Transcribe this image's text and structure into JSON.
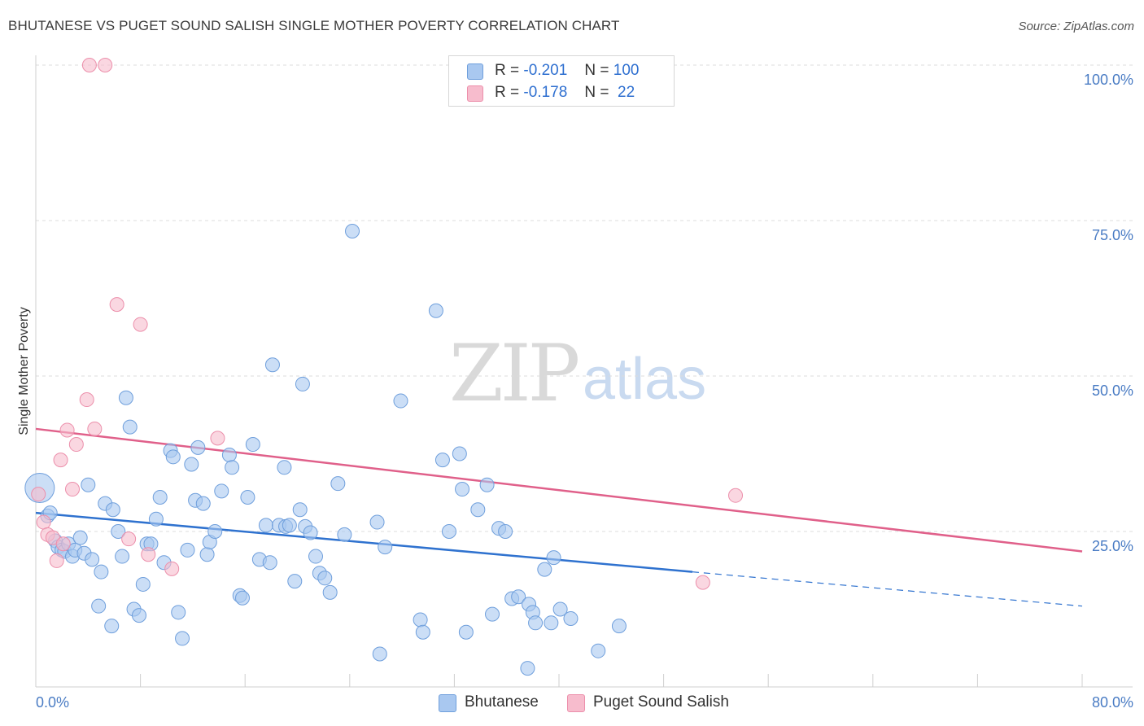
{
  "header": {
    "title": "BHUTANESE VS PUGET SOUND SALISH SINGLE MOTHER POVERTY CORRELATION CHART",
    "source": "Source: ZipAtlas.com"
  },
  "watermark": {
    "zip": "ZIP",
    "atlas": "atlas"
  },
  "legend": {
    "rows": [
      {
        "r_label": "R =",
        "r_value": "-0.201",
        "n_label": "N =",
        "n_value": "100",
        "color": "#a9c8f0"
      },
      {
        "r_label": "R =",
        "r_value": "-0.178",
        "n_label": "N =",
        "n_value": " 22",
        "color": "#f7bccd"
      }
    ]
  },
  "bottom_legend": [
    {
      "label": "Bhutanese",
      "color": "#a9c8f0"
    },
    {
      "label": "Puget Sound Salish",
      "color": "#f7bccd"
    }
  ],
  "chart_data": {
    "type": "scatter",
    "title": "BHUTANESE VS PUGET SOUND SALISH SINGLE MOTHER POVERTY CORRELATION CHART",
    "xlabel": "",
    "ylabel": "Single Mother Poverty",
    "xlim": [
      0,
      80
    ],
    "ylim": [
      0,
      100
    ],
    "x_tick_labels": [
      "0.0%",
      "80.0%"
    ],
    "y_ticks": [
      25,
      50,
      75,
      100
    ],
    "y_tick_labels": [
      "25.0%",
      "50.0%",
      "75.0%",
      "100.0%"
    ],
    "grid": "horizontal-dashed",
    "legend_position": "top-center",
    "series": [
      {
        "name": "Bhutanese",
        "color": "#a9c8f0",
        "stroke": "#6f9fdc",
        "trend": {
          "x0": 0,
          "y0": 28.0,
          "x1": 50.2,
          "y1": 18.5,
          "dash_to_x": 80,
          "dash_to_y": 13.0,
          "color": "#2f72cf"
        },
        "points": [
          [
            0.3,
            32,
            3
          ],
          [
            0.9,
            27.5,
            1
          ],
          [
            1.1,
            28.0,
            1
          ],
          [
            1.5,
            23.5,
            1
          ],
          [
            1.7,
            22.5,
            1
          ],
          [
            2.0,
            22.0,
            1
          ],
          [
            2.2,
            21.8,
            1
          ],
          [
            2.5,
            23.0,
            1
          ],
          [
            2.8,
            21.0,
            1
          ],
          [
            3.0,
            22.0,
            1
          ],
          [
            3.4,
            24.0,
            1
          ],
          [
            3.7,
            21.5,
            1
          ],
          [
            4.0,
            32.5,
            1
          ],
          [
            4.3,
            20.5,
            1
          ],
          [
            4.8,
            13.0,
            1
          ],
          [
            5.0,
            18.5,
            1
          ],
          [
            5.3,
            29.5,
            1
          ],
          [
            5.8,
            9.8,
            1
          ],
          [
            5.9,
            28.5,
            1
          ],
          [
            6.3,
            25.0,
            1
          ],
          [
            6.6,
            21.0,
            1
          ],
          [
            6.9,
            46.5,
            1
          ],
          [
            7.2,
            41.8,
            1
          ],
          [
            7.5,
            12.5,
            1
          ],
          [
            7.9,
            11.5,
            1
          ],
          [
            8.2,
            16.5,
            1
          ],
          [
            8.5,
            23.0,
            1
          ],
          [
            8.8,
            23.0,
            1
          ],
          [
            9.2,
            27.0,
            1
          ],
          [
            9.5,
            30.5,
            1
          ],
          [
            9.8,
            20.0,
            1
          ],
          [
            10.3,
            38.0,
            1
          ],
          [
            10.5,
            37.0,
            1
          ],
          [
            10.9,
            12.0,
            1
          ],
          [
            11.2,
            7.8,
            1
          ],
          [
            11.6,
            22.0,
            1
          ],
          [
            11.9,
            35.8,
            1
          ],
          [
            12.2,
            30.0,
            1
          ],
          [
            12.4,
            38.5,
            1
          ],
          [
            12.8,
            29.5,
            1
          ],
          [
            13.1,
            21.3,
            1
          ],
          [
            13.3,
            23.3,
            1
          ],
          [
            13.7,
            25.0,
            1
          ],
          [
            14.2,
            31.5,
            1
          ],
          [
            14.8,
            37.3,
            1
          ],
          [
            15.0,
            35.3,
            1
          ],
          [
            15.6,
            14.7,
            1
          ],
          [
            15.8,
            14.3,
            1
          ],
          [
            16.2,
            30.5,
            1
          ],
          [
            16.6,
            39.0,
            1
          ],
          [
            17.1,
            20.5,
            1
          ],
          [
            17.6,
            26.0,
            1
          ],
          [
            17.9,
            20.0,
            1
          ],
          [
            18.1,
            51.8,
            1
          ],
          [
            18.6,
            26.0,
            1
          ],
          [
            19.0,
            35.3,
            1
          ],
          [
            19.1,
            25.8,
            1
          ],
          [
            19.4,
            26.0,
            1
          ],
          [
            19.8,
            17.0,
            1
          ],
          [
            20.2,
            28.5,
            1
          ],
          [
            20.4,
            48.7,
            1
          ],
          [
            20.6,
            25.8,
            1
          ],
          [
            21.0,
            24.8,
            1
          ],
          [
            21.4,
            21.0,
            1
          ],
          [
            21.7,
            18.3,
            1
          ],
          [
            22.1,
            17.5,
            1
          ],
          [
            22.5,
            15.2,
            1
          ],
          [
            23.1,
            32.7,
            1
          ],
          [
            23.6,
            24.5,
            1
          ],
          [
            24.2,
            73.3,
            1
          ],
          [
            26.1,
            26.5,
            1
          ],
          [
            26.3,
            5.3,
            1
          ],
          [
            26.7,
            22.5,
            1
          ],
          [
            27.9,
            46.0,
            1
          ],
          [
            29.4,
            10.8,
            1
          ],
          [
            29.6,
            8.8,
            1
          ],
          [
            30.6,
            60.5,
            1
          ],
          [
            31.1,
            36.5,
            1
          ],
          [
            31.6,
            25.0,
            1
          ],
          [
            32.4,
            37.5,
            1
          ],
          [
            32.6,
            31.8,
            1
          ],
          [
            32.9,
            8.8,
            1
          ],
          [
            33.8,
            28.5,
            1
          ],
          [
            34.5,
            32.5,
            1
          ],
          [
            34.9,
            11.7,
            1
          ],
          [
            35.4,
            25.5,
            1
          ],
          [
            35.9,
            25.0,
            1
          ],
          [
            36.4,
            14.2,
            1
          ],
          [
            36.9,
            14.5,
            1
          ],
          [
            37.6,
            3.0,
            1
          ],
          [
            37.7,
            13.3,
            1
          ],
          [
            38.0,
            12.0,
            1
          ],
          [
            38.2,
            10.3,
            1
          ],
          [
            38.9,
            18.9,
            1
          ],
          [
            39.4,
            10.3,
            1
          ],
          [
            39.6,
            20.8,
            1
          ],
          [
            40.1,
            12.5,
            1
          ],
          [
            40.9,
            11.0,
            1
          ],
          [
            43.0,
            5.8,
            1
          ],
          [
            44.6,
            9.8,
            1
          ]
        ]
      },
      {
        "name": "Puget Sound Salish",
        "color": "#f7bccd",
        "stroke": "#ec8fab",
        "trend": {
          "x0": 0,
          "y0": 41.5,
          "x1": 80,
          "y1": 21.8,
          "color": "#e0608a"
        },
        "points": [
          [
            0.2,
            31.0,
            1
          ],
          [
            0.6,
            26.5,
            1
          ],
          [
            0.9,
            24.5,
            1
          ],
          [
            1.3,
            24.0,
            1
          ],
          [
            1.6,
            20.3,
            1
          ],
          [
            1.9,
            36.5,
            1
          ],
          [
            2.1,
            23.0,
            1
          ],
          [
            2.4,
            41.3,
            1
          ],
          [
            2.8,
            31.8,
            1
          ],
          [
            3.1,
            39.0,
            1
          ],
          [
            3.9,
            46.2,
            1
          ],
          [
            4.5,
            41.5,
            1
          ],
          [
            4.1,
            100,
            1
          ],
          [
            5.3,
            100,
            1
          ],
          [
            6.2,
            61.5,
            1
          ],
          [
            7.1,
            23.8,
            1
          ],
          [
            8.0,
            58.3,
            1
          ],
          [
            8.6,
            21.3,
            1
          ],
          [
            10.4,
            19.0,
            1
          ],
          [
            13.9,
            40.0,
            1
          ],
          [
            53.5,
            30.8,
            1
          ],
          [
            51.0,
            16.8,
            1
          ]
        ]
      }
    ]
  }
}
